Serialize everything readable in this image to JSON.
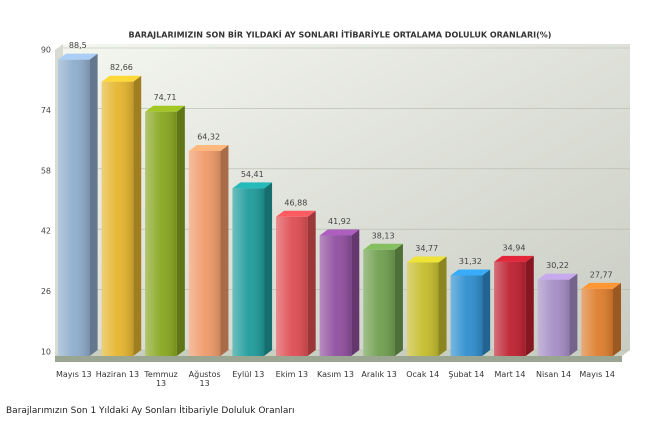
{
  "chart_data": {
    "type": "bar3d",
    "title": "BARAJLARIMIZIN SON BİR YILDAKİ AY SONLARI İTİBARİYLE ORTALAMA DOLULUK ORANLARI(%)",
    "caption": "Barajlarımızın Son 1 Yıldaki Ay Sonları İtibariyle Doluluk Oranları",
    "categories": [
      "Mayıs 13",
      "Haziran 13",
      "Temmuz 13",
      "Ağustos 13",
      "Eylül 13",
      "Ekim 13",
      "Kasım 13",
      "Aralık 13",
      "Ocak 14",
      "Şubat 14",
      "Mart 14",
      "Nisan 14",
      "Mayıs 14"
    ],
    "values": [
      88.5,
      82.66,
      74.71,
      64.32,
      54.41,
      46.88,
      41.92,
      38.13,
      34.77,
      31.32,
      34.94,
      30.22,
      27.77
    ],
    "value_labels": [
      "88,5",
      "82,66",
      "74,71",
      "64,32",
      "54,41",
      "46,88",
      "41,92",
      "38,13",
      "34,77",
      "31,32",
      "34,94",
      "30,22",
      "27,77"
    ],
    "colors": [
      "#8eaccc",
      "#e6b52e",
      "#88a71f",
      "#f09a6a",
      "#1f9c9c",
      "#de4d52",
      "#8f4f9f",
      "#6f9f4f",
      "#c6bd2e",
      "#2f8fcf",
      "#be2030",
      "#a68ec6",
      "#de7e2e"
    ],
    "ylim": [
      10,
      90
    ],
    "yticks": [
      10,
      26,
      42,
      58,
      74,
      90
    ],
    "grid": true
  }
}
